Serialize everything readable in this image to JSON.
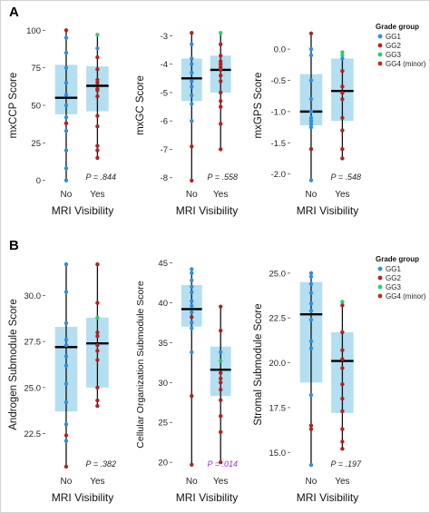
{
  "panels": [
    {
      "letter": "A"
    },
    {
      "letter": "B"
    }
  ],
  "colors": {
    "box": "#b3dff0",
    "whisker": "#111111",
    "median": "#000000",
    "GG1": "#2f8fe0",
    "GG2": "#b22222",
    "GG3": "#2ecc71",
    "GG4": "#b8310e",
    "significant_p": "#9b30d9"
  },
  "legends": [
    {
      "title": "Grade group",
      "entries": [
        "GG1",
        "GG2",
        "GG3",
        "GG4 (minor)"
      ]
    },
    {
      "title": "Grade group",
      "entries": [
        "GG1",
        "GG2",
        "GG3",
        "GG4 (minor)"
      ]
    }
  ],
  "chart_data": [
    {
      "type": "box",
      "panel": "A",
      "ylabel": "mxCCP Score",
      "xlabel": "MRI Visibility",
      "categories": [
        "No",
        "Yes"
      ],
      "ylim": [
        -2,
        102
      ],
      "yticks": [
        0,
        25,
        50,
        75,
        100
      ],
      "p_value": "P = .844",
      "significant": false,
      "boxes": [
        {
          "q1": 44,
          "median": 55,
          "q3": 77,
          "min": 0,
          "max": 100
        },
        {
          "q1": 46,
          "median": 63,
          "q3": 76,
          "min": 15,
          "max": 97
        }
      ],
      "points": [
        [
          [
            100,
            "GG2"
          ],
          [
            95,
            "GG1"
          ],
          [
            85,
            "GG1"
          ],
          [
            75,
            "GG1"
          ],
          [
            65,
            "GG1"
          ],
          [
            57,
            "GG1"
          ],
          [
            50,
            "GG1"
          ],
          [
            42,
            "GG1"
          ],
          [
            38,
            "GG2"
          ],
          [
            33,
            "GG1"
          ],
          [
            20,
            "GG1"
          ],
          [
            8,
            "GG1"
          ],
          [
            0,
            "GG1"
          ]
        ],
        [
          [
            97,
            "GG3"
          ],
          [
            88,
            "GG1"
          ],
          [
            82,
            "GG2"
          ],
          [
            74,
            "GG2"
          ],
          [
            67,
            "GG2"
          ],
          [
            65,
            "GG2"
          ],
          [
            61,
            "GG2"
          ],
          [
            60,
            "GG2"
          ],
          [
            56,
            "GG2"
          ],
          [
            43,
            "GG2"
          ],
          [
            36,
            "GG2"
          ],
          [
            23,
            "GG2"
          ],
          [
            20,
            "GG2"
          ],
          [
            15,
            "GG2"
          ]
        ]
      ]
    },
    {
      "type": "box",
      "panel": "A",
      "ylabel": "mxGC Score",
      "xlabel": "MRI Visibility",
      "categories": [
        "No",
        "Yes"
      ],
      "ylim": [
        -8.2,
        -2.7
      ],
      "yticks": [
        -8,
        -7,
        -6,
        -5,
        -4,
        -3
      ],
      "p_value": "P = .558",
      "significant": false,
      "boxes": [
        {
          "q1": -5.3,
          "median": -4.5,
          "q3": -3.8,
          "min": -8.1,
          "max": -2.9
        },
        {
          "q1": -5.0,
          "median": -4.2,
          "q3": -3.7,
          "min": -7.0,
          "max": -2.9
        }
      ],
      "points": [
        [
          [
            -2.9,
            "GG2"
          ],
          [
            -3.3,
            "GG1"
          ],
          [
            -3.8,
            "GG1"
          ],
          [
            -4.0,
            "GG1"
          ],
          [
            -4.3,
            "GG1"
          ],
          [
            -4.6,
            "GG1"
          ],
          [
            -4.8,
            "GG1"
          ],
          [
            -5.1,
            "GG1"
          ],
          [
            -5.4,
            "GG1"
          ],
          [
            -6.0,
            "GG1"
          ],
          [
            -6.9,
            "GG2"
          ],
          [
            -8.1,
            "GG2"
          ]
        ],
        [
          [
            -2.9,
            "GG3"
          ],
          [
            -3.3,
            "GG2"
          ],
          [
            -3.7,
            "GG2"
          ],
          [
            -3.9,
            "GG2"
          ],
          [
            -4.0,
            "GG2"
          ],
          [
            -4.1,
            "GG2"
          ],
          [
            -4.2,
            "GG2"
          ],
          [
            -4.4,
            "GG2"
          ],
          [
            -4.6,
            "GG2"
          ],
          [
            -5.0,
            "GG2"
          ],
          [
            -5.3,
            "GG2"
          ],
          [
            -5.5,
            "GG2"
          ],
          [
            -6.1,
            "GG2"
          ],
          [
            -7.0,
            "GG2"
          ]
        ]
      ]
    },
    {
      "type": "box",
      "panel": "A",
      "ylabel": "mxGPS Score",
      "xlabel": "MRI Visibility",
      "categories": [
        "No",
        "Yes"
      ],
      "ylim": [
        -2.15,
        0.35
      ],
      "yticks": [
        -2.0,
        -1.5,
        -1.0,
        -0.5,
        0.0
      ],
      "p_value": "P = .548",
      "significant": false,
      "boxes": [
        {
          "q1": -1.22,
          "median": -1.0,
          "q3": -0.4,
          "min": -2.1,
          "max": 0.25
        },
        {
          "q1": -1.15,
          "median": -0.67,
          "q3": -0.15,
          "min": -1.75,
          "max": -0.05
        }
      ],
      "points": [
        [
          [
            0.25,
            "GG2"
          ],
          [
            0.0,
            "GG1"
          ],
          [
            -0.1,
            "GG1"
          ],
          [
            -0.5,
            "GG1"
          ],
          [
            -0.8,
            "GG1"
          ],
          [
            -1.0,
            "GG1"
          ],
          [
            -1.1,
            "GG1"
          ],
          [
            -1.15,
            "GG1"
          ],
          [
            -1.2,
            "GG1"
          ],
          [
            -1.25,
            "GG1"
          ],
          [
            -1.6,
            "GG2"
          ],
          [
            -2.1,
            "GG1"
          ]
        ],
        [
          [
            -0.05,
            "GG3"
          ],
          [
            -0.1,
            "GG3"
          ],
          [
            -0.15,
            "GG1"
          ],
          [
            -0.35,
            "GG2"
          ],
          [
            -0.6,
            "GG2"
          ],
          [
            -0.7,
            "GG2"
          ],
          [
            -0.8,
            "GG2"
          ],
          [
            -1.1,
            "GG2"
          ],
          [
            -1.3,
            "GG2"
          ],
          [
            -1.6,
            "GG2"
          ],
          [
            -1.75,
            "GG2"
          ]
        ]
      ]
    },
    {
      "type": "box",
      "panel": "B",
      "ylabel": "Androgen Submodule Score",
      "xlabel": "MRI Visibility",
      "categories": [
        "No",
        "Yes"
      ],
      "ylim": [
        20.5,
        32.0
      ],
      "yticks": [
        22.5,
        25.0,
        27.5,
        30.0
      ],
      "p_value": "P = .382",
      "significant": false,
      "boxes": [
        {
          "q1": 23.7,
          "median": 27.2,
          "q3": 28.3,
          "min": 20.7,
          "max": 31.7
        },
        {
          "q1": 25.0,
          "median": 27.4,
          "q3": 28.8,
          "min": 24.0,
          "max": 31.7
        }
      ],
      "points": [
        [
          [
            31.7,
            "GG1"
          ],
          [
            30.2,
            "GG1"
          ],
          [
            28.5,
            "GG1"
          ],
          [
            27.6,
            "GG1"
          ],
          [
            27.3,
            "GG1"
          ],
          [
            26.7,
            "GG1"
          ],
          [
            26.2,
            "GG1"
          ],
          [
            25.2,
            "GG1"
          ],
          [
            24.2,
            "GG1"
          ],
          [
            23.0,
            "GG1"
          ],
          [
            22.4,
            "GG2"
          ],
          [
            22.1,
            "GG1"
          ],
          [
            20.7,
            "GG2"
          ]
        ],
        [
          [
            31.7,
            "GG2"
          ],
          [
            29.6,
            "GG2"
          ],
          [
            28.8,
            "GG3"
          ],
          [
            28.0,
            "GG2"
          ],
          [
            27.8,
            "GG2"
          ],
          [
            27.3,
            "GG2"
          ],
          [
            27.0,
            "GG2"
          ],
          [
            26.5,
            "GG2"
          ],
          [
            25.0,
            "GG2"
          ],
          [
            24.3,
            "GG2"
          ],
          [
            24.0,
            "GG2"
          ]
        ]
      ]
    },
    {
      "type": "box",
      "panel": "B",
      "ylabel": "Cellular Organization Submodule Score",
      "xlabel": "MRI Visibility",
      "categories": [
        "No",
        "Yes"
      ],
      "ylim": [
        19.0,
        45.5
      ],
      "yticks": [
        20,
        25,
        30,
        35,
        40,
        45
      ],
      "p_value": "P = .014",
      "significant": true,
      "boxes": [
        {
          "q1": 37.0,
          "median": 39.2,
          "q3": 42.2,
          "min": 19.7,
          "max": 44.2
        },
        {
          "q1": 28.3,
          "median": 31.6,
          "q3": 34.5,
          "min": 20.0,
          "max": 39.5
        }
      ],
      "points": [
        [
          [
            44.2,
            "GG1"
          ],
          [
            43.7,
            "GG1"
          ],
          [
            42.8,
            "GG1"
          ],
          [
            42.0,
            "GG1"
          ],
          [
            41.3,
            "GG1"
          ],
          [
            40.2,
            "GG1"
          ],
          [
            39.6,
            "GG1"
          ],
          [
            38.8,
            "GG1"
          ],
          [
            38.2,
            "GG2"
          ],
          [
            37.5,
            "GG1"
          ],
          [
            36.8,
            "GG1"
          ],
          [
            33.8,
            "GG1"
          ],
          [
            28.3,
            "GG2"
          ],
          [
            19.7,
            "GG2"
          ]
        ],
        [
          [
            39.5,
            "GG2"
          ],
          [
            36.5,
            "GG2"
          ],
          [
            33.8,
            "GG1"
          ],
          [
            32.7,
            "GG3"
          ],
          [
            31.2,
            "GG2"
          ],
          [
            30.5,
            "GG2"
          ],
          [
            30.0,
            "GG2"
          ],
          [
            29.1,
            "GG2"
          ],
          [
            27.8,
            "GG2"
          ],
          [
            25.8,
            "GG2"
          ],
          [
            23.8,
            "GG2"
          ],
          [
            20.0,
            "GG2"
          ]
        ]
      ]
    },
    {
      "type": "box",
      "panel": "B",
      "ylabel": "Stromal Submodule Score",
      "xlabel": "MRI Visibility",
      "categories": [
        "No",
        "Yes"
      ],
      "ylim": [
        14.0,
        25.8
      ],
      "yticks": [
        15.0,
        17.5,
        20.0,
        22.5,
        25.0
      ],
      "p_value": "P = .197",
      "significant": false,
      "boxes": [
        {
          "q1": 18.9,
          "median": 22.7,
          "q3": 24.5,
          "min": 14.3,
          "max": 25.0
        },
        {
          "q1": 17.2,
          "median": 20.1,
          "q3": 21.7,
          "min": 15.2,
          "max": 23.4
        }
      ],
      "points": [
        [
          [
            25.0,
            "GG1"
          ],
          [
            24.8,
            "GG1"
          ],
          [
            24.4,
            "GG1"
          ],
          [
            23.9,
            "GG1"
          ],
          [
            23.3,
            "GG1"
          ],
          [
            22.9,
            "GG1"
          ],
          [
            22.4,
            "GG1"
          ],
          [
            21.2,
            "GG1"
          ],
          [
            20.8,
            "GG1"
          ],
          [
            18.2,
            "GG1"
          ],
          [
            16.5,
            "GG2"
          ],
          [
            16.3,
            "GG2"
          ],
          [
            14.3,
            "GG1"
          ]
        ],
        [
          [
            23.4,
            "GG3"
          ],
          [
            23.2,
            "GG2"
          ],
          [
            21.7,
            "GG2"
          ],
          [
            20.7,
            "GG2"
          ],
          [
            20.2,
            "GG2"
          ],
          [
            19.7,
            "GG2"
          ],
          [
            18.8,
            "GG2"
          ],
          [
            18.0,
            "GG2"
          ],
          [
            17.3,
            "GG2"
          ],
          [
            16.3,
            "GG2"
          ],
          [
            15.6,
            "GG2"
          ],
          [
            15.2,
            "GG2"
          ]
        ]
      ]
    }
  ]
}
